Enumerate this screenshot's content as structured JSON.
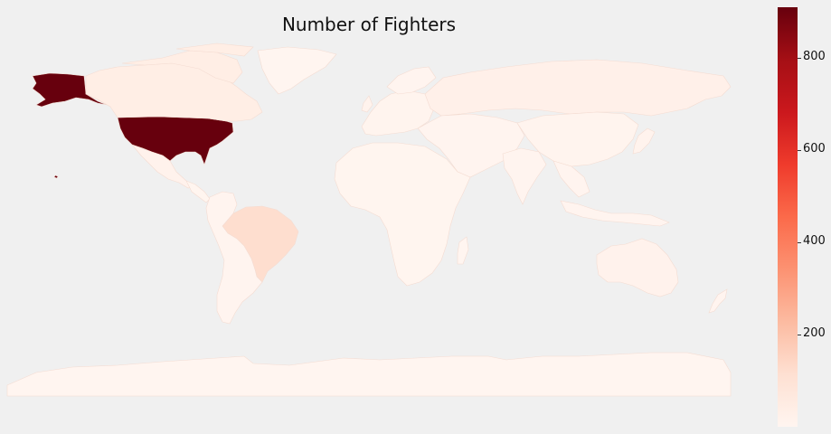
{
  "title": "Number of Fighters",
  "colormap": {
    "name": "Reds",
    "stops": [
      "#fff5f0",
      "#fee0d2",
      "#fcbba1",
      "#fc9272",
      "#fb6a4a",
      "#ef3b2c",
      "#cb181d",
      "#a50f15",
      "#67000d"
    ],
    "min": 0,
    "max": 910
  },
  "colorbar": {
    "ticks": [
      200,
      400,
      600,
      800
    ],
    "labels": [
      "200",
      "400",
      "600",
      "800"
    ]
  },
  "chart_data": {
    "type": "choropleth",
    "title": "Number of Fighters",
    "value_range": [
      0,
      910
    ],
    "regions": [
      {
        "name": "United States",
        "value": 910
      },
      {
        "name": "Brazil",
        "value": 120
      },
      {
        "name": "Canada",
        "value": 40
      },
      {
        "name": "Russia",
        "value": 25
      },
      {
        "name": "Mexico",
        "value": 15
      },
      {
        "name": "Australia",
        "value": 15
      },
      {
        "name": "Japan",
        "value": 10
      },
      {
        "name": "United Kingdom",
        "value": 10
      },
      {
        "name": "China",
        "value": 8
      },
      {
        "name": "Argentina",
        "value": 5
      },
      {
        "name": "Africa",
        "value": 2
      },
      {
        "name": "Antarctica",
        "value": 0
      }
    ]
  }
}
